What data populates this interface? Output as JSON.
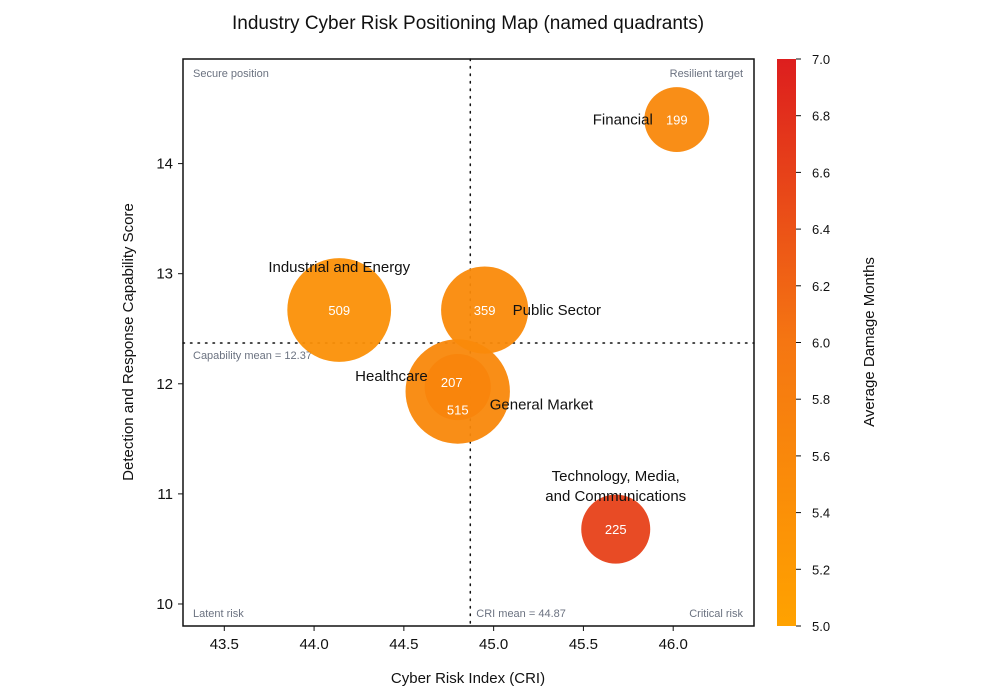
{
  "chart_data": {
    "type": "scatter",
    "title": "Industry Cyber Risk Positioning Map (named quadrants)",
    "xlabel": "Cyber Risk Index (CRI)",
    "ylabel": "Detection and Response Capability Score",
    "xlim": [
      43.27,
      46.45
    ],
    "ylim": [
      9.8,
      14.95
    ],
    "xticks": [
      "43.5",
      "44.0",
      "44.5",
      "45.0",
      "45.5",
      "46.0"
    ],
    "yticks": [
      "10",
      "11",
      "12",
      "13",
      "14"
    ],
    "points": [
      {
        "label": "Financial",
        "x": 46.02,
        "y": 14.4,
        "size": 199,
        "size_label": "199",
        "color_value": 5.6
      },
      {
        "label": "Industrial and Energy",
        "x": 44.14,
        "y": 12.67,
        "size": 509,
        "size_label": "509",
        "color_value": 5.4
      },
      {
        "label": "Public Sector",
        "x": 44.95,
        "y": 12.67,
        "size": 359,
        "size_label": "359",
        "color_value": 5.55
      },
      {
        "label": "Healthcare",
        "x": 44.8,
        "y": 11.97,
        "size": 207,
        "size_label": "207",
        "color_value": 5.65
      },
      {
        "label": "General Market",
        "x": 44.8,
        "y": 11.93,
        "size": 515,
        "size_label": "515",
        "color_value": 5.6
      },
      {
        "label": "Technology, Media,\nand Communications",
        "x": 45.68,
        "y": 10.68,
        "size": 225,
        "size_label": "225",
        "color_value": 6.6
      }
    ],
    "reference_lines": {
      "x": {
        "value": 44.87,
        "label": "CRI mean = 44.87"
      },
      "y": {
        "value": 12.37,
        "label": "Capability mean = 12.37"
      }
    },
    "quadrant_labels": {
      "top_left": "Secure position",
      "top_right": "Resilient target",
      "bottom_left": "Latent risk",
      "bottom_right": "Critical risk"
    },
    "colorbar": {
      "label": "Average Damage Months",
      "min": 5.0,
      "max": 7.0,
      "ticks": [
        "5.0",
        "5.2",
        "5.4",
        "5.6",
        "5.8",
        "6.0",
        "6.2",
        "6.4",
        "6.6",
        "6.8",
        "7.0"
      ],
      "colors": [
        "#ffa200",
        "#f57612",
        "#dd1e1e"
      ]
    },
    "grid": false
  }
}
